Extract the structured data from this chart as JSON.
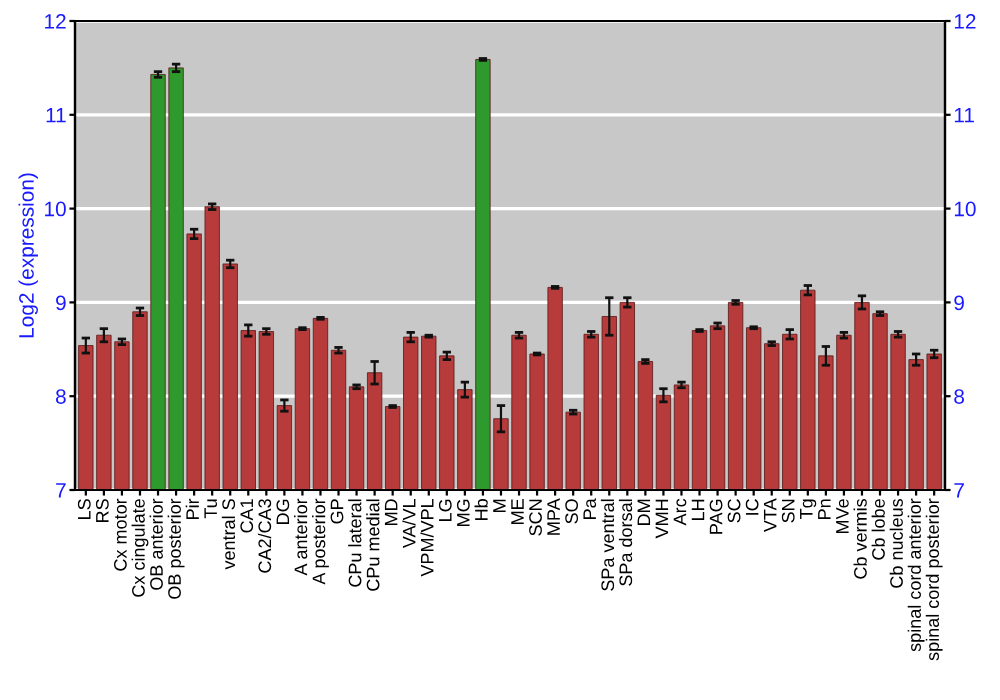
{
  "chart_data": {
    "type": "bar",
    "ylabel": "Log2 (expression)",
    "categories": [
      "LS",
      "RS",
      "Cx motor",
      "Cx cingulate",
      "OB anterior",
      "OB posterior",
      "Pir",
      "Tu",
      "ventral S",
      "CA1",
      "CA2/CA3",
      "DG",
      "A anterior",
      "A posterior",
      "GP",
      "CPu lateral",
      "CPu medial",
      "MD",
      "VA/VL",
      "VPM/VPL",
      "LG",
      "MG",
      "Hb",
      "M",
      "ME",
      "SCN",
      "MPA",
      "SO",
      "Pa",
      "SPa ventral",
      "SPa dorsal",
      "DM",
      "VMH",
      "Arc",
      "LH",
      "PAG",
      "SC",
      "IC",
      "VTA",
      "SN",
      "Tg",
      "Pn",
      "MVe",
      "Cb vermis",
      "Cb lobe",
      "Cb nucleus",
      "spinal cord anterior",
      "spinal cord posterior"
    ],
    "values": [
      8.54,
      8.65,
      8.58,
      8.9,
      11.43,
      11.5,
      9.73,
      10.02,
      9.41,
      8.7,
      8.69,
      7.9,
      8.72,
      8.83,
      8.49,
      8.1,
      8.25,
      7.89,
      8.63,
      8.64,
      8.43,
      8.07,
      11.59,
      7.76,
      8.65,
      8.45,
      9.16,
      7.83,
      8.66,
      8.85,
      9.0,
      8.37,
      8.01,
      8.12,
      8.7,
      8.75,
      9.0,
      8.73,
      8.56,
      8.66,
      9.13,
      8.43,
      8.65,
      9.0,
      8.88,
      8.66,
      8.39,
      8.45
    ],
    "errors": [
      0.08,
      0.07,
      0.03,
      0.04,
      0.03,
      0.04,
      0.05,
      0.03,
      0.04,
      0.06,
      0.03,
      0.06,
      0.01,
      0.01,
      0.03,
      0.02,
      0.12,
      0.01,
      0.05,
      0.01,
      0.04,
      0.08,
      0.01,
      0.14,
      0.03,
      0.01,
      0.01,
      0.02,
      0.03,
      0.2,
      0.05,
      0.02,
      0.07,
      0.03,
      0.01,
      0.03,
      0.02,
      0.01,
      0.02,
      0.05,
      0.05,
      0.1,
      0.03,
      0.07,
      0.02,
      0.03,
      0.06,
      0.04
    ],
    "colors": [
      "#b83b3b",
      "#b83b3b",
      "#b83b3b",
      "#b83b3b",
      "#2e9a2e",
      "#2e9a2e",
      "#b83b3b",
      "#b83b3b",
      "#b83b3b",
      "#b83b3b",
      "#b83b3b",
      "#b83b3b",
      "#b83b3b",
      "#b83b3b",
      "#b83b3b",
      "#b83b3b",
      "#b83b3b",
      "#b83b3b",
      "#b83b3b",
      "#b83b3b",
      "#b83b3b",
      "#b83b3b",
      "#2e9a2e",
      "#b83b3b",
      "#b83b3b",
      "#b83b3b",
      "#b83b3b",
      "#b83b3b",
      "#b83b3b",
      "#b83b3b",
      "#b83b3b",
      "#b83b3b",
      "#b83b3b",
      "#b83b3b",
      "#b83b3b",
      "#b83b3b",
      "#b83b3b",
      "#b83b3b",
      "#b83b3b",
      "#b83b3b",
      "#b83b3b",
      "#b83b3b",
      "#b83b3b",
      "#b83b3b",
      "#b83b3b",
      "#b83b3b",
      "#b83b3b",
      "#b83b3b"
    ],
    "ylim": [
      7,
      12
    ],
    "yticks": [
      7,
      8,
      9,
      10,
      11,
      12
    ],
    "y2lim": [
      7,
      12
    ],
    "y2ticks": [
      7,
      8,
      9,
      10,
      11,
      12
    ],
    "grid": "y"
  }
}
